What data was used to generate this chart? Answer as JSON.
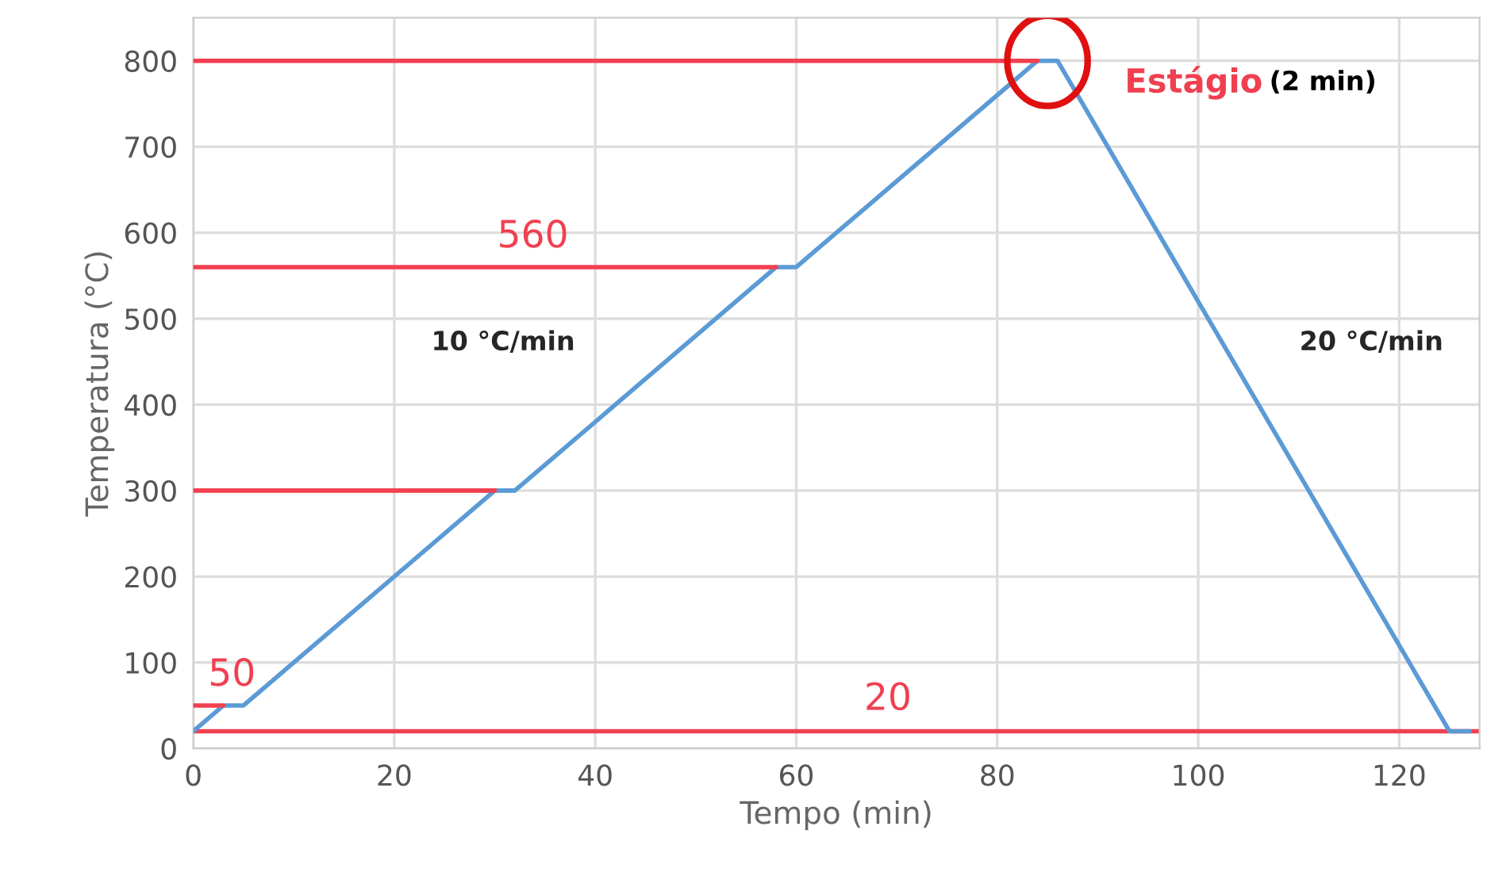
{
  "chart_data": {
    "type": "line",
    "xlabel": "Tempo (min)",
    "ylabel": "Temperatura (°C)",
    "xlim": [
      0,
      128
    ],
    "ylim": [
      0,
      850
    ],
    "xticks": [
      0,
      20,
      40,
      60,
      80,
      100,
      120
    ],
    "yticks": [
      0,
      100,
      200,
      300,
      400,
      500,
      600,
      700,
      800
    ],
    "grid": true,
    "legend": false,
    "series": [
      {
        "color": "#5b9bd5",
        "x": [
          0,
          3,
          5,
          30,
          32,
          58,
          60,
          84,
          86,
          125,
          127
        ],
        "values": [
          20,
          50,
          50,
          300,
          300,
          560,
          560,
          800,
          800,
          20,
          20
        ]
      },
      {
        "color": "#f04050",
        "x": [
          0,
          84
        ],
        "values": [
          800,
          800
        ]
      },
      {
        "color": "#f04050",
        "x": [
          0,
          58
        ],
        "values": [
          560,
          560
        ]
      },
      {
        "color": "#f04050",
        "x": [
          0,
          30
        ],
        "values": [
          300,
          300
        ]
      },
      {
        "color": "#f04050",
        "x": [
          0,
          3
        ],
        "values": [
          50,
          50
        ]
      }
    ],
    "ref_lines": [
      {
        "axis": "y",
        "value": 20,
        "color": "#f04050"
      }
    ],
    "annotations": [
      "560",
      "50",
      "20",
      {
        "text": "Estágio",
        "x": 85,
        "y": 800
      },
      "(2 min)",
      "10 °C/min",
      "20 °C/min"
    ]
  }
}
